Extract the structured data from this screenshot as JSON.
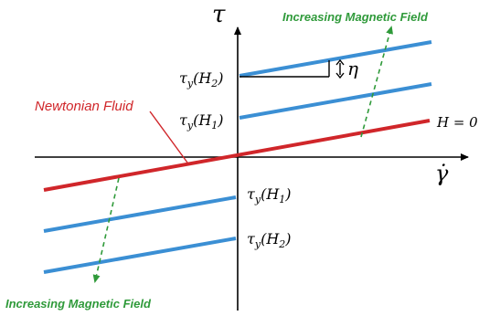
{
  "axes": {
    "y_label": "τ",
    "x_label": "γ̇"
  },
  "annotations": {
    "increasing_top": "Increasing Magnetic Field",
    "increasing_bottom": "Increasing Magnetic Field",
    "newtonian": "Newtonian Fluid",
    "h_zero": "H = 0",
    "eta": "η"
  },
  "yield_labels": {
    "pos_h2": "τy(H2)",
    "pos_h1": "τy(H1)",
    "neg_h1": "τy(H1)",
    "neg_h2": "τy(H2)"
  },
  "colors": {
    "newtonian": "#d0262a",
    "bingham": "#3b8fd4",
    "arrow": "#2f9a3a",
    "axis": "#000000"
  }
}
